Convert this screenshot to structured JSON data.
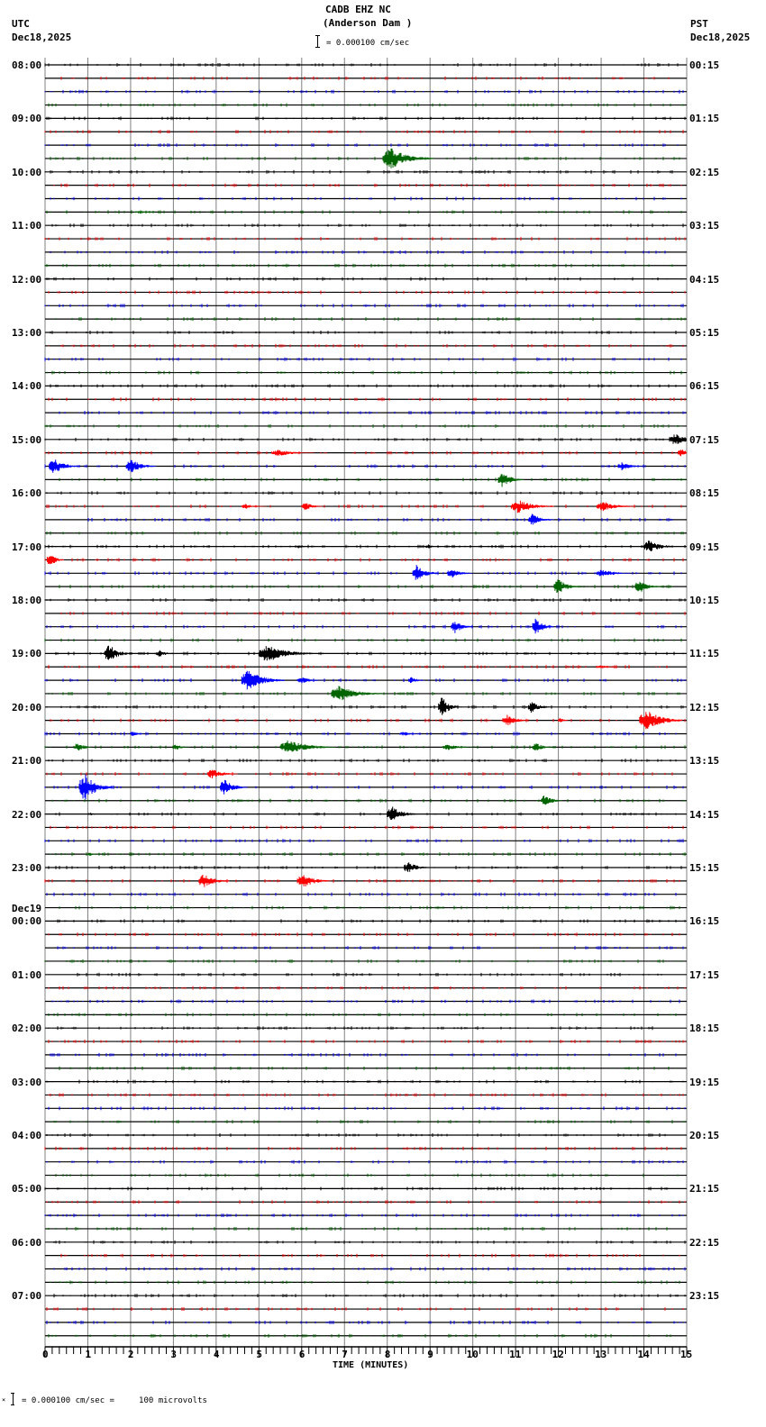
{
  "header": {
    "station": "CADB EHZ NC",
    "location": "(Anderson Dam )",
    "scale_label": "= 0.000100 cm/sec",
    "left_tz": "UTC",
    "left_date": "Dec18,2025",
    "right_tz": "PST",
    "right_date": "Dec18,2025"
  },
  "footer": {
    "scale_note": "= 0.000100 cm/sec =     100 microvolts",
    "x_axis_title": "TIME (MINUTES)"
  },
  "colors": {
    "trace_cycle": [
      "#000000",
      "#ff0000",
      "#0000ff",
      "#006400"
    ],
    "grid": "#808080"
  },
  "chart_data": {
    "type": "line",
    "title": "CADB EHZ NC (Anderson Dam )",
    "subtitle": "Helicorder 24h seismogram, 15 min per line",
    "xlabel": "TIME (MINUTES)",
    "ylabel": "",
    "xlim": [
      0,
      15
    ],
    "x_ticks": [
      "0",
      "1",
      "2",
      "3",
      "4",
      "5",
      "6",
      "7",
      "8",
      "9",
      "10",
      "11",
      "12",
      "13",
      "14",
      "15"
    ],
    "grid": true,
    "lines_per_hour": 4,
    "utc_labels": [
      "08:00",
      "09:00",
      "10:00",
      "11:00",
      "12:00",
      "13:00",
      "14:00",
      "15:00",
      "16:00",
      "17:00",
      "18:00",
      "19:00",
      "20:00",
      "21:00",
      "22:00",
      "23:00",
      "00:00",
      "01:00",
      "02:00",
      "03:00",
      "04:00",
      "05:00",
      "06:00",
      "07:00"
    ],
    "date_change_label": {
      "row_hour_index": 16,
      "text": "Dec19"
    },
    "pst_labels": [
      "00:15",
      "01:15",
      "02:15",
      "03:15",
      "04:15",
      "05:15",
      "06:15",
      "07:15",
      "08:15",
      "09:15",
      "10:15",
      "11:15",
      "12:15",
      "13:15",
      "14:15",
      "15:15",
      "16:15",
      "17:15",
      "18:15",
      "19:15",
      "20:15",
      "21:15",
      "22:15",
      "23:15"
    ],
    "events": [
      {
        "row": 7,
        "minute": 7.9,
        "amp": 12,
        "dur": 1.2
      },
      {
        "row": 11,
        "minute": 2.1,
        "amp": 2,
        "dur": 0.6
      },
      {
        "row": 28,
        "minute": 14.6,
        "amp": 7,
        "dur": 0.8
      },
      {
        "row": 29,
        "minute": 5.3,
        "amp": 4,
        "dur": 1.0
      },
      {
        "row": 29,
        "minute": 14.8,
        "amp": 5,
        "dur": 0.4
      },
      {
        "row": 30,
        "minute": 0.1,
        "amp": 9,
        "dur": 0.7
      },
      {
        "row": 30,
        "minute": 1.9,
        "amp": 8,
        "dur": 0.7
      },
      {
        "row": 30,
        "minute": 13.4,
        "amp": 5,
        "dur": 0.6
      },
      {
        "row": 31,
        "minute": 10.6,
        "amp": 9,
        "dur": 0.6
      },
      {
        "row": 33,
        "minute": 4.6,
        "amp": 3,
        "dur": 0.6
      },
      {
        "row": 33,
        "minute": 6.0,
        "amp": 5,
        "dur": 0.5
      },
      {
        "row": 33,
        "minute": 10.9,
        "amp": 8,
        "dur": 1.0
      },
      {
        "row": 33,
        "minute": 12.9,
        "amp": 6,
        "dur": 0.9
      },
      {
        "row": 34,
        "minute": 11.3,
        "amp": 8,
        "dur": 0.6
      },
      {
        "row": 36,
        "minute": 5.9,
        "amp": 3,
        "dur": 0.3
      },
      {
        "row": 36,
        "minute": 8.9,
        "amp": 3,
        "dur": 0.3
      },
      {
        "row": 36,
        "minute": 14.0,
        "amp": 7,
        "dur": 0.8
      },
      {
        "row": 37,
        "minute": 0.05,
        "amp": 9,
        "dur": 0.4
      },
      {
        "row": 38,
        "minute": 8.6,
        "amp": 10,
        "dur": 0.6
      },
      {
        "row": 38,
        "minute": 9.4,
        "amp": 6,
        "dur": 0.6
      },
      {
        "row": 38,
        "minute": 12.9,
        "amp": 5,
        "dur": 0.8
      },
      {
        "row": 39,
        "minute": 11.9,
        "amp": 9,
        "dur": 0.6
      },
      {
        "row": 39,
        "minute": 13.8,
        "amp": 8,
        "dur": 0.6
      },
      {
        "row": 42,
        "minute": 9.5,
        "amp": 8,
        "dur": 0.5
      },
      {
        "row": 42,
        "minute": 11.4,
        "amp": 10,
        "dur": 0.5
      },
      {
        "row": 44,
        "minute": 1.4,
        "amp": 11,
        "dur": 0.6
      },
      {
        "row": 44,
        "minute": 2.6,
        "amp": 4,
        "dur": 0.5
      },
      {
        "row": 44,
        "minute": 5.0,
        "amp": 10,
        "dur": 1.3
      },
      {
        "row": 45,
        "minute": 12.9,
        "amp": 2,
        "dur": 0.6
      },
      {
        "row": 46,
        "minute": 4.6,
        "amp": 12,
        "dur": 1.0
      },
      {
        "row": 46,
        "minute": 5.9,
        "amp": 4,
        "dur": 0.6
      },
      {
        "row": 46,
        "minute": 8.5,
        "amp": 4,
        "dur": 0.4
      },
      {
        "row": 47,
        "minute": 6.7,
        "amp": 9,
        "dur": 1.2
      },
      {
        "row": 48,
        "minute": 9.2,
        "amp": 12,
        "dur": 0.5
      },
      {
        "row": 48,
        "minute": 11.3,
        "amp": 7,
        "dur": 0.5
      },
      {
        "row": 49,
        "minute": 10.7,
        "amp": 7,
        "dur": 0.6
      },
      {
        "row": 49,
        "minute": 12.0,
        "amp": 3,
        "dur": 0.3
      },
      {
        "row": 49,
        "minute": 13.9,
        "amp": 13,
        "dur": 1.0
      },
      {
        "row": 50,
        "minute": 2.0,
        "amp": 4,
        "dur": 0.3
      },
      {
        "row": 50,
        "minute": 8.3,
        "amp": 3,
        "dur": 0.5
      },
      {
        "row": 51,
        "minute": 0.7,
        "amp": 6,
        "dur": 0.4
      },
      {
        "row": 51,
        "minute": 3.0,
        "amp": 4,
        "dur": 0.4
      },
      {
        "row": 51,
        "minute": 5.5,
        "amp": 8,
        "dur": 1.3
      },
      {
        "row": 51,
        "minute": 9.3,
        "amp": 4,
        "dur": 0.7
      },
      {
        "row": 51,
        "minute": 11.4,
        "amp": 5,
        "dur": 0.5
      },
      {
        "row": 53,
        "minute": 3.8,
        "amp": 6,
        "dur": 0.7
      },
      {
        "row": 54,
        "minute": 0.8,
        "amp": 16,
        "dur": 0.8
      },
      {
        "row": 54,
        "minute": 4.1,
        "amp": 10,
        "dur": 0.6
      },
      {
        "row": 55,
        "minute": 11.6,
        "amp": 7,
        "dur": 0.5
      },
      {
        "row": 56,
        "minute": 1.0,
        "amp": 2,
        "dur": 0.3
      },
      {
        "row": 56,
        "minute": 8.0,
        "amp": 9,
        "dur": 0.7
      },
      {
        "row": 59,
        "minute": 1.0,
        "amp": 2,
        "dur": 0.3
      },
      {
        "row": 60,
        "minute": 8.4,
        "amp": 7,
        "dur": 0.6
      },
      {
        "row": 61,
        "minute": 3.6,
        "amp": 9,
        "dur": 0.7
      },
      {
        "row": 61,
        "minute": 5.9,
        "amp": 8,
        "dur": 0.8
      }
    ]
  }
}
